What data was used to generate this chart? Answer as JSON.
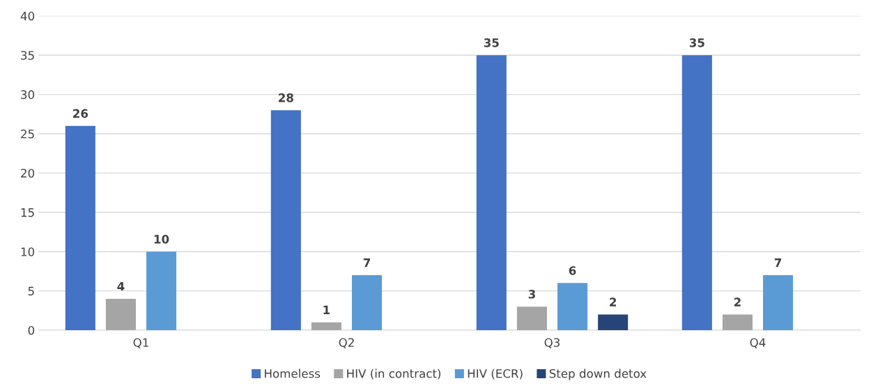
{
  "chart_data": {
    "type": "bar",
    "categories": [
      "Q1",
      "Q2",
      "Q3",
      "Q4"
    ],
    "series": [
      {
        "name": "Homeless",
        "color": "#4472c4",
        "values": [
          26,
          28,
          35,
          35
        ]
      },
      {
        "name": "HIV (in contract)",
        "color": "#a5a5a5",
        "values": [
          4,
          1,
          3,
          2
        ]
      },
      {
        "name": "HIV (ECR)",
        "color": "#5b9bd5",
        "values": [
          10,
          7,
          6,
          7
        ]
      },
      {
        "name": "Step down detox",
        "color": "#264478",
        "values": [
          null,
          null,
          2,
          null
        ]
      }
    ],
    "ylim": [
      0,
      40
    ],
    "yticks": [
      0,
      5,
      10,
      15,
      20,
      25,
      30,
      35,
      40
    ],
    "grid": "y",
    "legend": "bottom",
    "data_labels": true
  }
}
